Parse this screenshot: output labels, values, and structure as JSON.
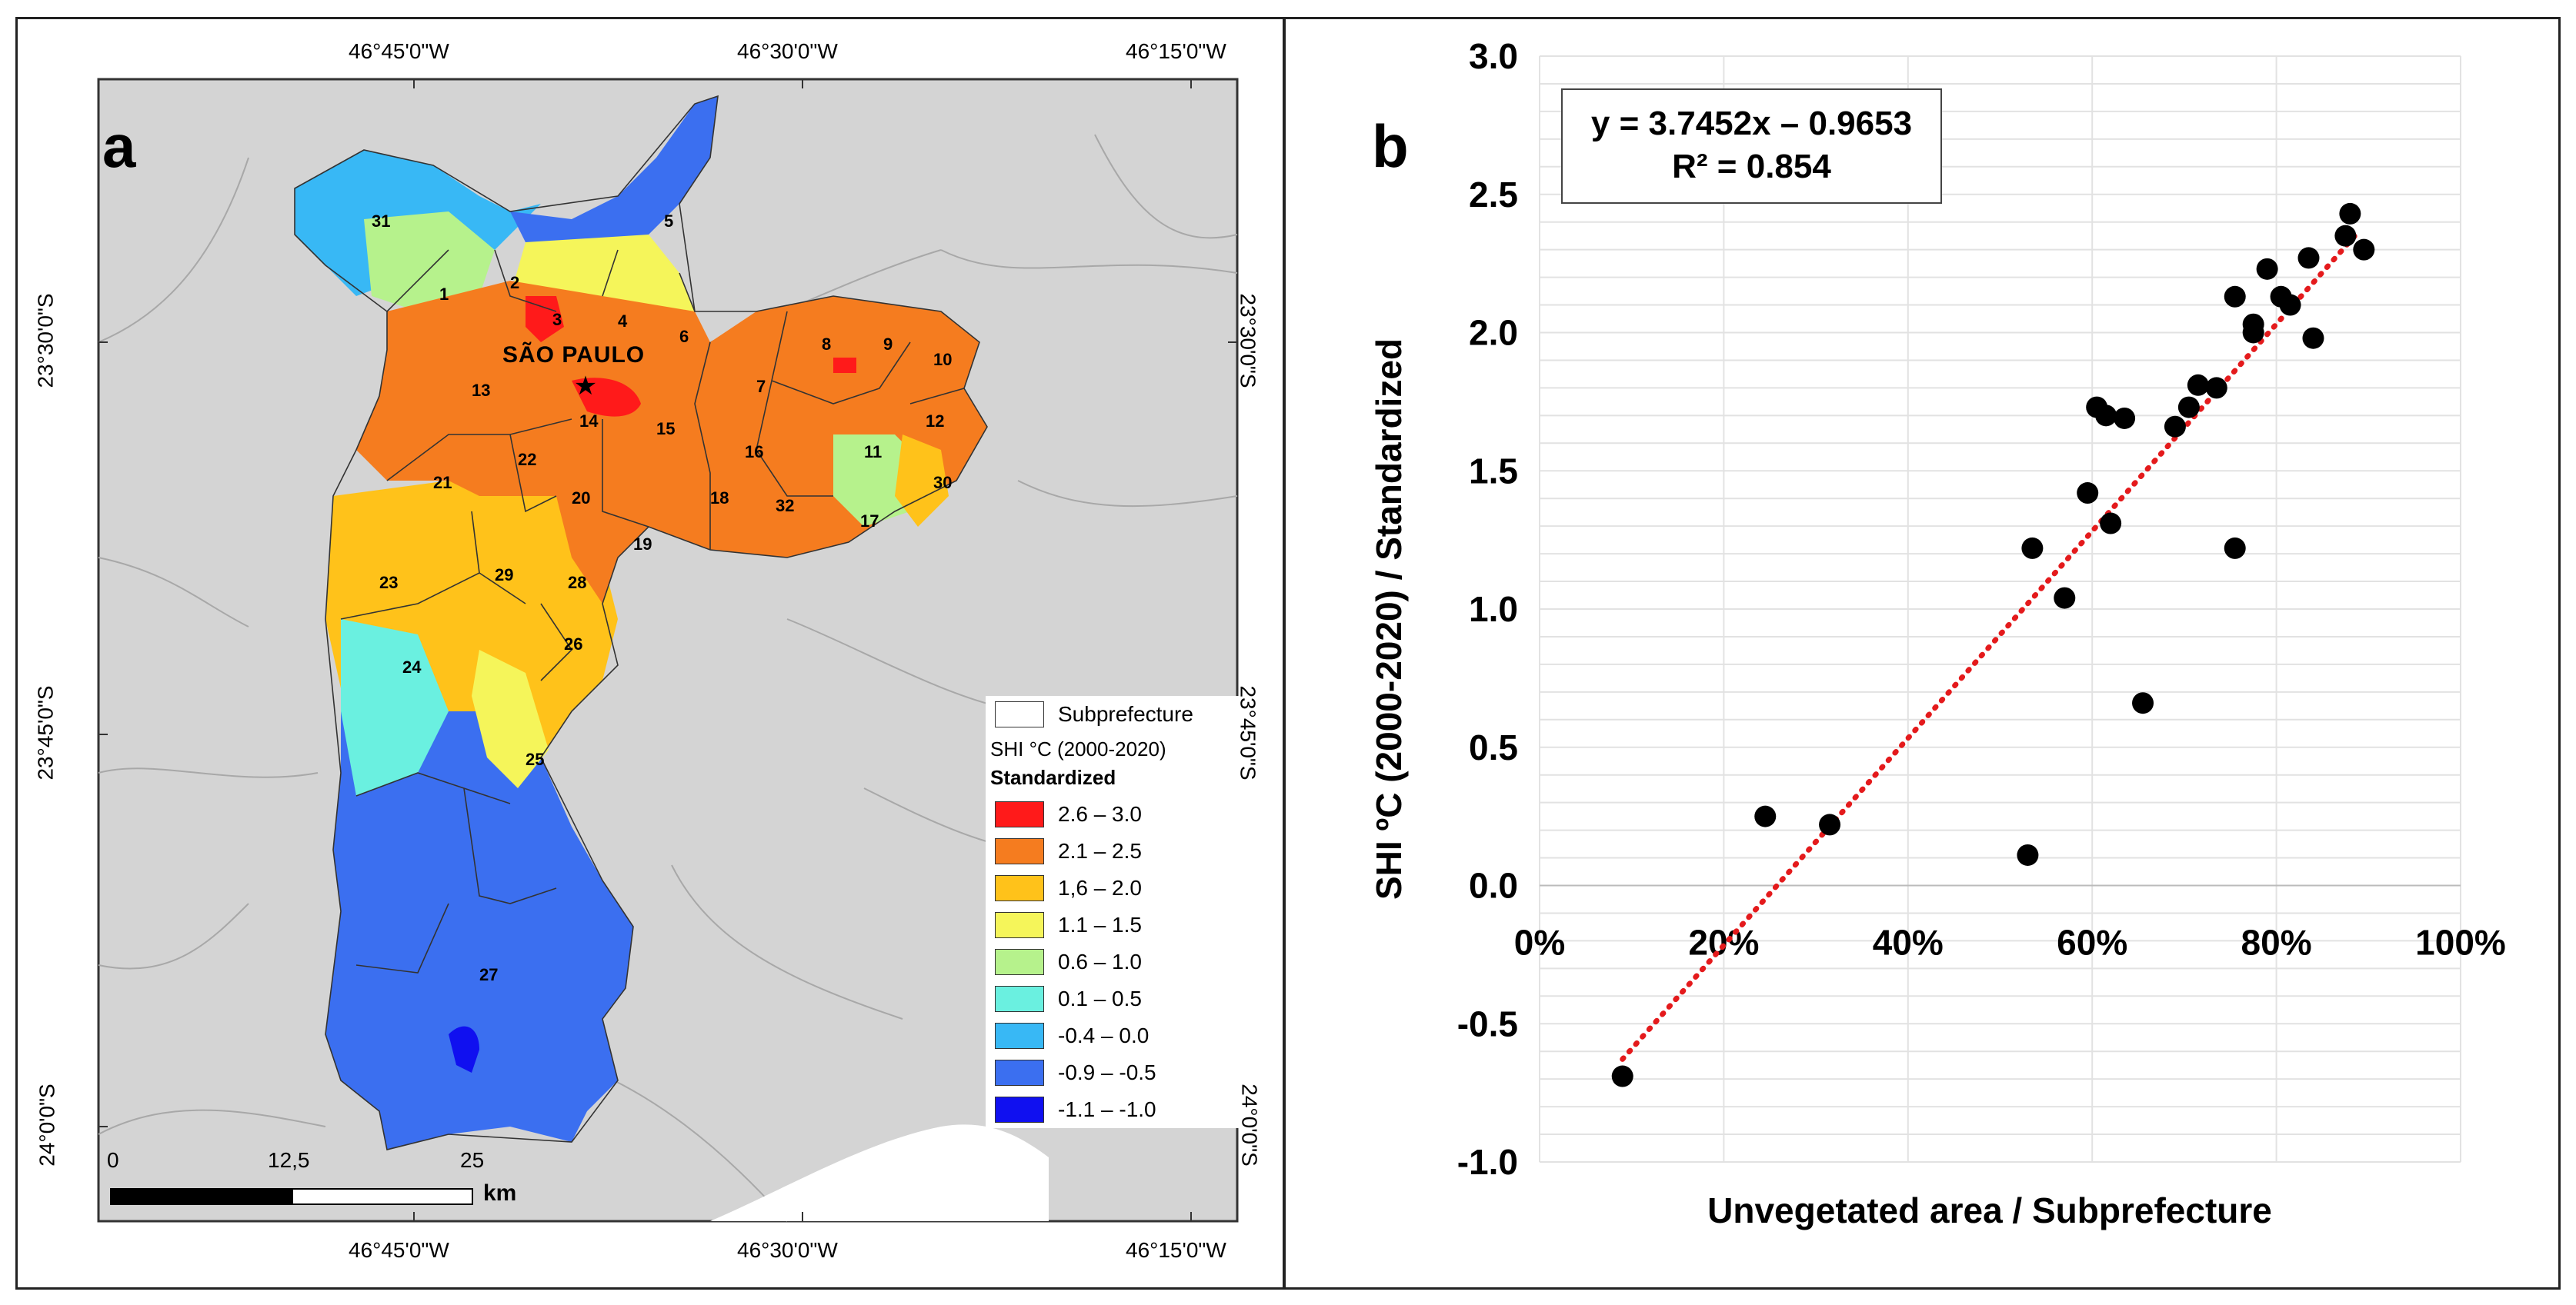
{
  "panel_a": {
    "label": "a",
    "city_label": "SÃO PAULO",
    "lon_labels_top": [
      "46°45'0\"W",
      "46°30'0\"W",
      "46°15'0\"W"
    ],
    "lon_labels_bottom": [
      "46°45'0\"W",
      "46°30'0\"W",
      "46°15'0\"W"
    ],
    "lat_labels_left": [
      "23°30'0\"S",
      "23°45'0\"S",
      "24°0'0\"S"
    ],
    "lat_labels_right": [
      "23°30'0\"S",
      "23°45'0\"S",
      "24°0'0\"S"
    ],
    "subprefecture_numbers": [
      "1",
      "2",
      "3",
      "4",
      "5",
      "6",
      "7",
      "8",
      "9",
      "10",
      "11",
      "12",
      "13",
      "14",
      "15",
      "16",
      "17",
      "18",
      "19",
      "20",
      "21",
      "22",
      "23",
      "24",
      "25",
      "26",
      "27",
      "28",
      "29",
      "30",
      "31",
      "32"
    ],
    "legend": {
      "subprefecture_label": "Subprefecture",
      "title_line1": "SHI °C (2000-2020)",
      "title_line2": "Standardized",
      "classes": [
        {
          "label": "2.6 – 3.0",
          "color": "#ff1a1a"
        },
        {
          "label": "2.1 – 2.5",
          "color": "#f57c1f"
        },
        {
          "label": "1,6 – 2.0",
          "color": "#ffc21a"
        },
        {
          "label": "1.1 – 1.5",
          "color": "#f5f55a"
        },
        {
          "label": "0.6 – 1.0",
          "color": "#b6f28c"
        },
        {
          "label": "0.1 – 0.5",
          "color": "#6af0e0"
        },
        {
          "label": "-0.4 – 0.0",
          "color": "#38b8f5"
        },
        {
          "label": "-0.9 – -0.5",
          "color": "#3b6ff0"
        },
        {
          "label": "-1.1 – -1.0",
          "color": "#1010f0"
        }
      ]
    },
    "scale": {
      "ticks": [
        "0",
        "12,5",
        "25"
      ],
      "unit": "km"
    }
  },
  "panel_b": {
    "label": "b",
    "equation": "y = 3.7452x – 0.9653",
    "r_squared": "R² = 0.854",
    "chart_data": {
      "type": "scatter",
      "xlabel": "Unvegetated area / Subprefecture",
      "ylabel": "SHI ºC (2000-2020)  / Standardized",
      "xlim": [
        0,
        1
      ],
      "ylim": [
        -1.0,
        3.0
      ],
      "x_ticks": [
        "0%",
        "20%",
        "40%",
        "60%",
        "80%",
        "100%"
      ],
      "y_ticks": [
        "3.0",
        "2.5",
        "2.0",
        "1.5",
        "1.0",
        "0.5",
        "0.0",
        "-0.5",
        "-1.0"
      ],
      "x_tick_values": [
        0,
        0.2,
        0.4,
        0.6,
        0.8,
        1.0
      ],
      "y_tick_values": [
        3.0,
        2.5,
        2.0,
        1.5,
        1.0,
        0.5,
        0.0,
        -0.5,
        -1.0
      ],
      "points": [
        {
          "x": 0.09,
          "y": -0.69
        },
        {
          "x": 0.245,
          "y": 0.25
        },
        {
          "x": 0.315,
          "y": 0.22
        },
        {
          "x": 0.53,
          "y": 0.11
        },
        {
          "x": 0.535,
          "y": 1.22
        },
        {
          "x": 0.57,
          "y": 1.04
        },
        {
          "x": 0.595,
          "y": 1.42
        },
        {
          "x": 0.605,
          "y": 1.73
        },
        {
          "x": 0.615,
          "y": 1.7
        },
        {
          "x": 0.62,
          "y": 1.31
        },
        {
          "x": 0.635,
          "y": 1.69
        },
        {
          "x": 0.655,
          "y": 0.66
        },
        {
          "x": 0.69,
          "y": 1.66
        },
        {
          "x": 0.705,
          "y": 1.73
        },
        {
          "x": 0.715,
          "y": 1.81
        },
        {
          "x": 0.735,
          "y": 1.8
        },
        {
          "x": 0.755,
          "y": 2.13
        },
        {
          "x": 0.755,
          "y": 1.22
        },
        {
          "x": 0.775,
          "y": 2.03
        },
        {
          "x": 0.775,
          "y": 2.0
        },
        {
          "x": 0.79,
          "y": 2.23
        },
        {
          "x": 0.805,
          "y": 2.13
        },
        {
          "x": 0.815,
          "y": 2.1
        },
        {
          "x": 0.835,
          "y": 2.27
        },
        {
          "x": 0.84,
          "y": 1.98
        },
        {
          "x": 0.875,
          "y": 2.35
        },
        {
          "x": 0.88,
          "y": 2.43
        },
        {
          "x": 0.895,
          "y": 2.3
        }
      ],
      "trendline": {
        "slope": 3.7452,
        "intercept": -0.9653,
        "x_range": [
          0.09,
          0.89
        ],
        "color": "#e41a1c",
        "style": "dotted"
      }
    }
  }
}
